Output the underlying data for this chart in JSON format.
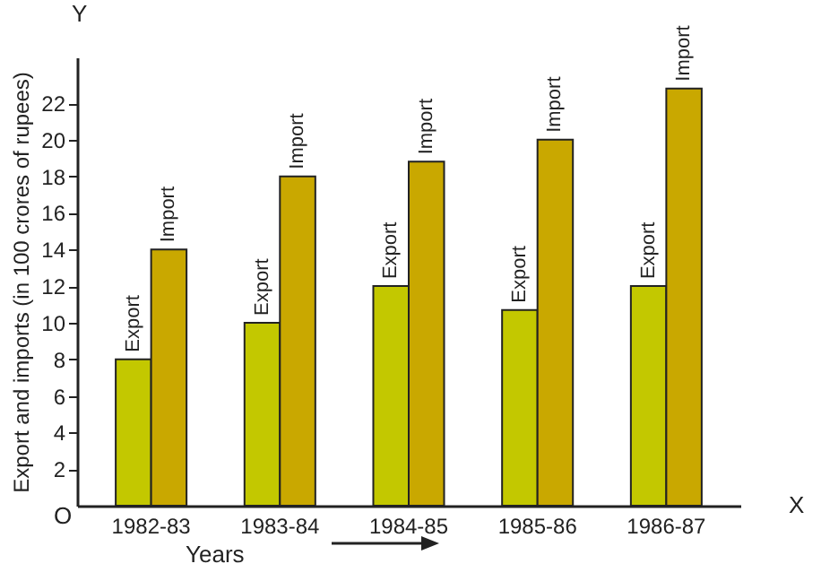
{
  "chart_data": {
    "type": "bar",
    "categories": [
      "1982-83",
      "1983-84",
      "1984-85",
      "1985-86",
      "1986-87"
    ],
    "series": [
      {
        "name": "Export",
        "color": "#c3c800",
        "values": [
          8,
          10,
          12,
          10.7,
          12
        ]
      },
      {
        "name": "Import",
        "color": "#c9a800",
        "values": [
          14,
          18,
          18.8,
          20,
          22.8
        ]
      }
    ],
    "xlabel": "Years",
    "ylabel": "Export and imports (in 100 crores of rupees)",
    "ylim": [
      0,
      24.5
    ],
    "yticks": [
      2,
      4,
      6,
      8,
      10,
      12,
      14,
      16,
      18,
      20,
      22
    ],
    "annotations": [
      "Y",
      "X",
      "O"
    ],
    "grid": false,
    "legend": false
  }
}
